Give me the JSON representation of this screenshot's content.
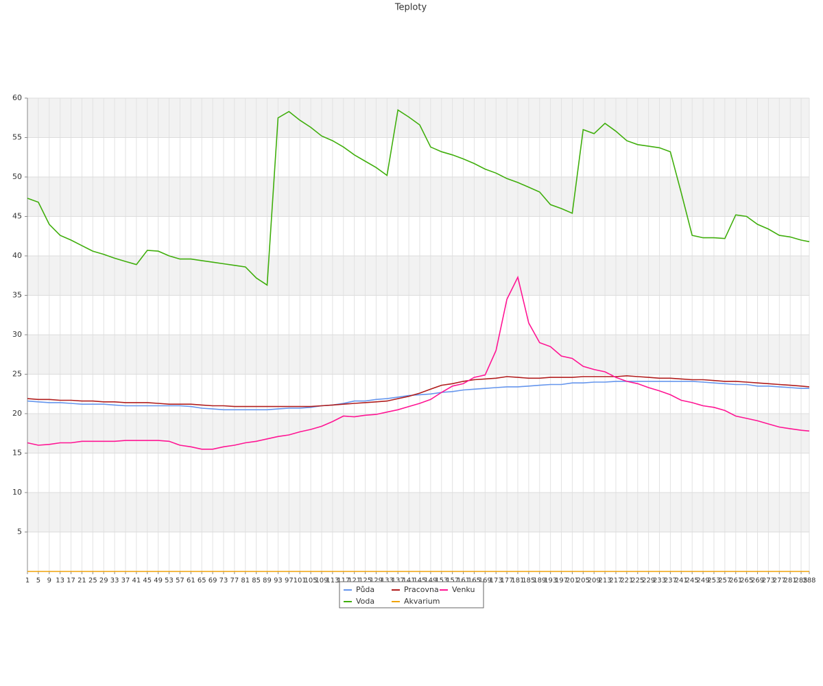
{
  "chart_data": {
    "type": "line",
    "title": "Teploty",
    "x": [
      1,
      5,
      9,
      13,
      17,
      21,
      25,
      29,
      33,
      37,
      41,
      45,
      49,
      53,
      57,
      61,
      65,
      69,
      73,
      77,
      81,
      85,
      89,
      93,
      97,
      101,
      105,
      109,
      113,
      117,
      121,
      125,
      129,
      133,
      137,
      141,
      145,
      149,
      153,
      157,
      161,
      165,
      169,
      173,
      177,
      181,
      185,
      189,
      193,
      197,
      201,
      205,
      209,
      213,
      217,
      221,
      225,
      229,
      233,
      237,
      241,
      245,
      249,
      253,
      257,
      261,
      265,
      269,
      273,
      277,
      281,
      285,
      288
    ],
    "xlim": [
      1,
      288
    ],
    "ylim": [
      0,
      60
    ],
    "yticks": [
      5,
      10,
      15,
      20,
      25,
      30,
      35,
      40,
      45,
      50,
      55,
      60
    ],
    "grid": true,
    "series": [
      {
        "name": "Půda",
        "color": "#6495ed",
        "values": [
          21.6,
          21.5,
          21.4,
          21.4,
          21.3,
          21.2,
          21.2,
          21.2,
          21.1,
          21.0,
          21.0,
          21.0,
          21.0,
          21.0,
          21.0,
          20.9,
          20.7,
          20.6,
          20.5,
          20.5,
          20.5,
          20.5,
          20.5,
          20.6,
          20.7,
          20.7,
          20.8,
          21.0,
          21.1,
          21.3,
          21.6,
          21.6,
          21.8,
          21.9,
          22.1,
          22.3,
          22.4,
          22.5,
          22.7,
          22.8,
          23.0,
          23.1,
          23.2,
          23.3,
          23.4,
          23.4,
          23.5,
          23.6,
          23.7,
          23.7,
          23.9,
          23.9,
          24.0,
          24.0,
          24.1,
          24.1,
          24.1,
          24.1,
          24.1,
          24.1,
          24.1,
          24.1,
          24.0,
          23.9,
          23.8,
          23.7,
          23.7,
          23.5,
          23.5,
          23.4,
          23.3,
          23.2,
          23.2
        ]
      },
      {
        "name": "Voda",
        "color": "#3fae0b",
        "values": [
          47.3,
          46.8,
          44.0,
          42.6,
          42.0,
          41.3,
          40.6,
          40.2,
          39.7,
          39.3,
          38.9,
          40.7,
          40.6,
          40.0,
          39.6,
          39.6,
          39.4,
          39.2,
          39.0,
          38.8,
          38.6,
          37.2,
          36.3,
          57.5,
          58.3,
          57.2,
          56.3,
          55.2,
          54.6,
          53.8,
          52.8,
          52.0,
          51.2,
          50.2,
          58.5,
          57.6,
          56.6,
          53.8,
          53.2,
          52.8,
          52.3,
          51.7,
          51.0,
          50.5,
          49.8,
          49.3,
          48.7,
          48.1,
          46.5,
          46.0,
          45.4,
          56.0,
          55.5,
          56.8,
          55.8,
          54.6,
          54.1,
          53.9,
          53.7,
          53.2,
          48.0,
          42.6,
          42.3,
          42.3,
          42.2,
          45.2,
          45.0,
          44.0,
          43.4,
          42.6,
          42.4,
          42.0,
          41.8
        ]
      },
      {
        "name": "Pracovna",
        "color": "#b01c1c",
        "values": [
          21.9,
          21.8,
          21.8,
          21.7,
          21.7,
          21.6,
          21.6,
          21.5,
          21.5,
          21.4,
          21.4,
          21.4,
          21.3,
          21.2,
          21.2,
          21.2,
          21.1,
          21.0,
          21.0,
          20.9,
          20.9,
          20.9,
          20.9,
          20.9,
          20.9,
          20.9,
          20.9,
          21.0,
          21.1,
          21.2,
          21.3,
          21.4,
          21.5,
          21.6,
          21.9,
          22.2,
          22.6,
          23.1,
          23.6,
          23.8,
          24.1,
          24.3,
          24.4,
          24.5,
          24.7,
          24.6,
          24.5,
          24.5,
          24.6,
          24.6,
          24.6,
          24.7,
          24.7,
          24.7,
          24.7,
          24.8,
          24.7,
          24.6,
          24.5,
          24.5,
          24.4,
          24.3,
          24.3,
          24.2,
          24.1,
          24.1,
          24.0,
          23.9,
          23.8,
          23.7,
          23.6,
          23.5,
          23.4
        ]
      },
      {
        "name": "Akvarium",
        "color": "#f0a30a",
        "values": [
          0,
          0,
          0,
          0,
          0,
          0,
          0,
          0,
          0,
          0,
          0,
          0,
          0,
          0,
          0,
          0,
          0,
          0,
          0,
          0,
          0,
          0,
          0,
          0,
          0,
          0,
          0,
          0,
          0,
          0,
          0,
          0,
          0,
          0,
          0,
          0,
          0,
          0,
          0,
          0,
          0,
          0,
          0,
          0,
          0,
          0,
          0,
          0,
          0,
          0,
          0,
          0,
          0,
          0,
          0,
          0,
          0,
          0,
          0,
          0,
          0,
          0,
          0,
          0,
          0,
          0,
          0,
          0,
          0,
          0,
          0,
          0,
          0
        ]
      },
      {
        "name": "Venku",
        "color": "#ff1493",
        "values": [
          16.3,
          16.0,
          16.1,
          16.3,
          16.3,
          16.5,
          16.5,
          16.5,
          16.5,
          16.6,
          16.6,
          16.6,
          16.6,
          16.5,
          16.0,
          15.8,
          15.5,
          15.5,
          15.8,
          16.0,
          16.3,
          16.5,
          16.8,
          17.1,
          17.3,
          17.7,
          18.0,
          18.4,
          19.0,
          19.7,
          19.6,
          19.8,
          19.9,
          20.2,
          20.5,
          20.9,
          21.3,
          21.8,
          22.7,
          23.5,
          23.8,
          24.6,
          24.9,
          28.0,
          34.5,
          37.3,
          31.5,
          29.0,
          28.5,
          27.3,
          27.0,
          26.0,
          25.6,
          25.3,
          24.6,
          24.1,
          23.8,
          23.3,
          22.9,
          22.4,
          21.7,
          21.4,
          21.0,
          20.8,
          20.4,
          19.7,
          19.4,
          19.1,
          18.7,
          18.3,
          18.1,
          17.9,
          17.8
        ]
      }
    ]
  }
}
